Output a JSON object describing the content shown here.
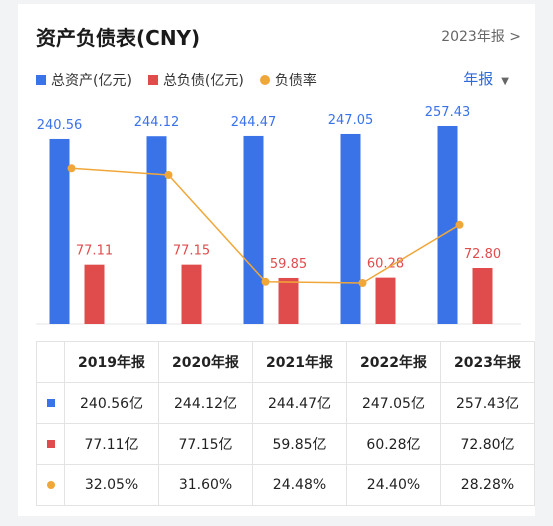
{
  "header": {
    "title": "资产负债表(CNY)",
    "report_link": "2023年报 >"
  },
  "legend": {
    "total_assets": "总资产(亿元)",
    "total_liabilities": "总负债(亿元)",
    "debt_ratio": "负债率"
  },
  "period_select": {
    "value": "年报",
    "caret": "▼"
  },
  "colors": {
    "assets": "#3a73e8",
    "liabilities": "#e04c4c",
    "ratio": "#f0a73a"
  },
  "chart_data": {
    "type": "bar",
    "categories": [
      "2019年报",
      "2020年报",
      "2021年报",
      "2022年报",
      "2023年报"
    ],
    "series": [
      {
        "name": "总资产(亿元)",
        "values": [
          240.56,
          244.12,
          244.47,
          247.05,
          257.43
        ],
        "labels": [
          "240.56",
          "244.12",
          "244.47",
          "247.05",
          "257.43"
        ]
      },
      {
        "name": "总负债(亿元)",
        "values": [
          77.11,
          77.15,
          59.85,
          60.28,
          72.8
        ],
        "labels": [
          "77.11",
          "77.15",
          "59.85",
          "60.28",
          "72.80"
        ]
      },
      {
        "name": "负债率",
        "type": "line",
        "values": [
          32.05,
          31.6,
          24.48,
          24.4,
          28.28
        ]
      }
    ]
  },
  "table": {
    "columns": [
      "2019年报",
      "2020年报",
      "2021年报",
      "2022年报",
      "2023年报"
    ],
    "rows": [
      {
        "marker": "square-blue",
        "cells": [
          "240.56亿",
          "244.12亿",
          "244.47亿",
          "247.05亿",
          "257.43亿"
        ]
      },
      {
        "marker": "square-red",
        "cells": [
          "77.11亿",
          "77.15亿",
          "59.85亿",
          "60.28亿",
          "72.80亿"
        ]
      },
      {
        "marker": "dot-orange",
        "cells": [
          "32.05%",
          "31.60%",
          "24.48%",
          "24.40%",
          "28.28%"
        ]
      }
    ]
  }
}
